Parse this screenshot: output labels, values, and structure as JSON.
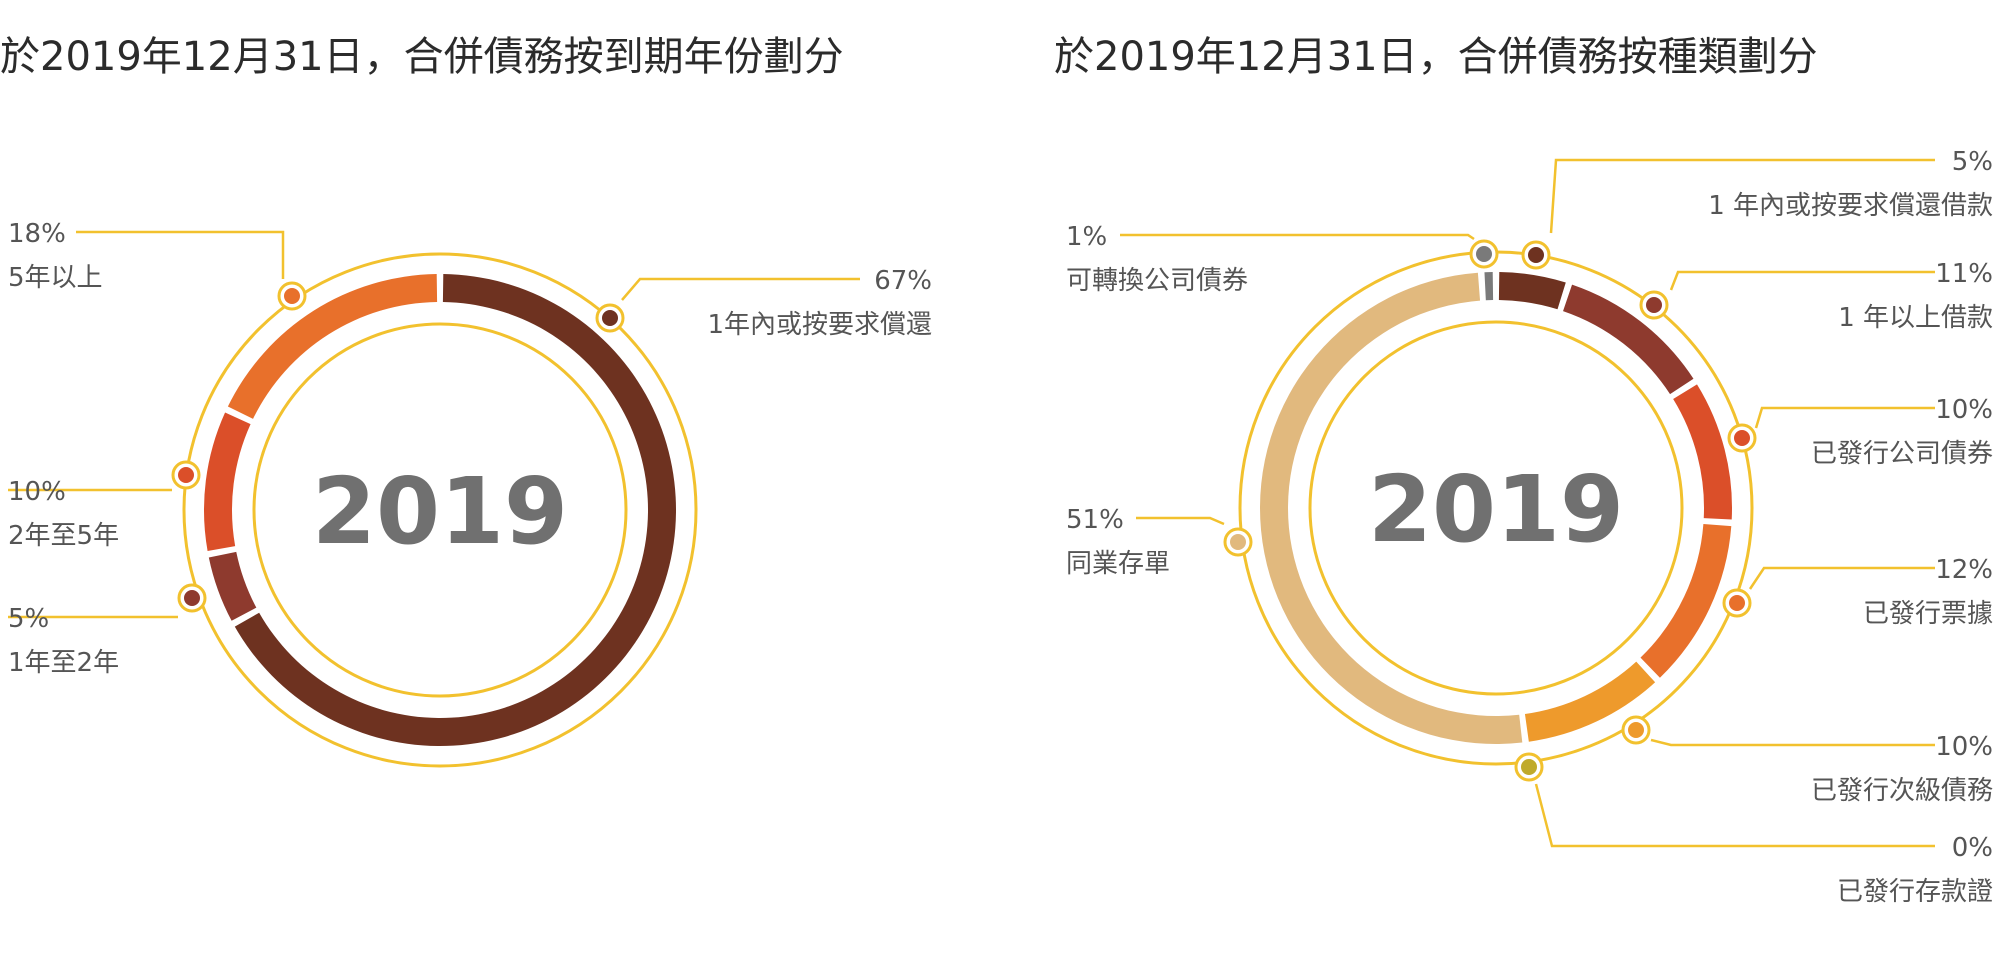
{
  "colors": {
    "ring": "#F2C12E",
    "dot_ring": "#F2C12E",
    "center_text": "#707070",
    "label_text": "#555555"
  },
  "chart_data": [
    {
      "type": "pie",
      "title": "於2019年12月31日，合併債務按到期年份劃分",
      "center_label": "2019",
      "slices": [
        {
          "label": "1年內或按要求償還",
          "value": 67,
          "value_text": "67%",
          "color": "#6E3220"
        },
        {
          "label": "1年至2年",
          "value": 5,
          "value_text": "5%",
          "color": "#8E3A2E"
        },
        {
          "label": "2年至5年",
          "value": 10,
          "value_text": "10%",
          "color": "#DB4F29"
        },
        {
          "label": "5年以上",
          "value": 18,
          "value_text": "18%",
          "color": "#E8702B"
        }
      ]
    },
    {
      "type": "pie",
      "title": "於2019年12月31日，合併債務按種類劃分",
      "center_label": "2019",
      "slices": [
        {
          "label": "1 年內或按要求償還借款",
          "value": 5,
          "value_text": "5%",
          "color": "#6E3220"
        },
        {
          "label": "1 年以上借款",
          "value": 11,
          "value_text": "11%",
          "color": "#8E3A2E"
        },
        {
          "label": "已發行公司債券",
          "value": 10,
          "value_text": "10%",
          "color": "#DB4F29"
        },
        {
          "label": "已發行票據",
          "value": 12,
          "value_text": "12%",
          "color": "#E8702B"
        },
        {
          "label": "已發行次級債務",
          "value": 10,
          "value_text": "10%",
          "color": "#EE9A2C"
        },
        {
          "label": "已發行存款證",
          "value": 0,
          "value_text": "0%",
          "color": "#C0AA2A"
        },
        {
          "label": "同業存單",
          "value": 51,
          "value_text": "51%",
          "color": "#E1B97E"
        },
        {
          "label": "可轉換公司債券",
          "value": 1,
          "value_text": "1%",
          "color": "#7A7A7A"
        }
      ]
    }
  ]
}
